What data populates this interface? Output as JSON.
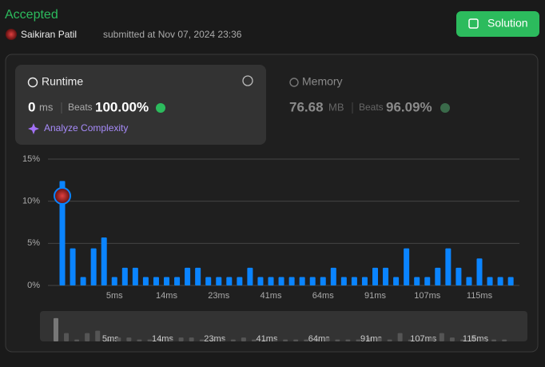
{
  "header": {
    "status": "Accepted",
    "user": "Saikiran Patil",
    "submitted": "submitted at Nov 07, 2024 23:36",
    "button": "Solution"
  },
  "runtime": {
    "title": "Runtime",
    "value": "0",
    "unit": "ms",
    "beats_label": "Beats",
    "beats": "100.00%",
    "analyze": "Analyze Complexity"
  },
  "memory": {
    "title": "Memory",
    "value": "76.68",
    "unit": "MB",
    "beats_label": "Beats",
    "beats": "96.09%"
  },
  "chart_data": {
    "type": "bar",
    "color": "#0a84ff",
    "categories": [
      null,
      null,
      null,
      null,
      null,
      "5ms",
      null,
      null,
      null,
      null,
      "14ms",
      null,
      null,
      null,
      null,
      "23ms",
      null,
      null,
      null,
      null,
      "41ms",
      null,
      null,
      null,
      null,
      "64ms",
      null,
      null,
      null,
      null,
      "91ms",
      null,
      null,
      null,
      null,
      "107ms",
      null,
      null,
      null,
      null,
      "115ms",
      null,
      null,
      null
    ],
    "values": [
      12.4,
      4.4,
      1.0,
      4.4,
      5.7,
      1.0,
      2.1,
      2.1,
      1.0,
      1.0,
      1.0,
      1.0,
      2.1,
      2.1,
      1.0,
      1.0,
      1.0,
      1.0,
      2.1,
      1.0,
      1.0,
      1.0,
      1.0,
      1.0,
      1.0,
      1.0,
      2.1,
      1.0,
      1.0,
      1.0,
      2.1,
      2.1,
      1.0,
      4.4,
      1.0,
      1.0,
      2.1,
      4.4,
      2.1,
      1.0,
      3.2,
      1.0,
      1.0,
      1.0
    ],
    "ylim": [
      0,
      15
    ],
    "yticks": [
      {
        "value": 0,
        "label": "0%"
      },
      {
        "value": 5,
        "label": "5%"
      },
      {
        "value": 10,
        "label": "10%"
      },
      {
        "value": 15,
        "label": "15%"
      }
    ],
    "grid": true
  }
}
